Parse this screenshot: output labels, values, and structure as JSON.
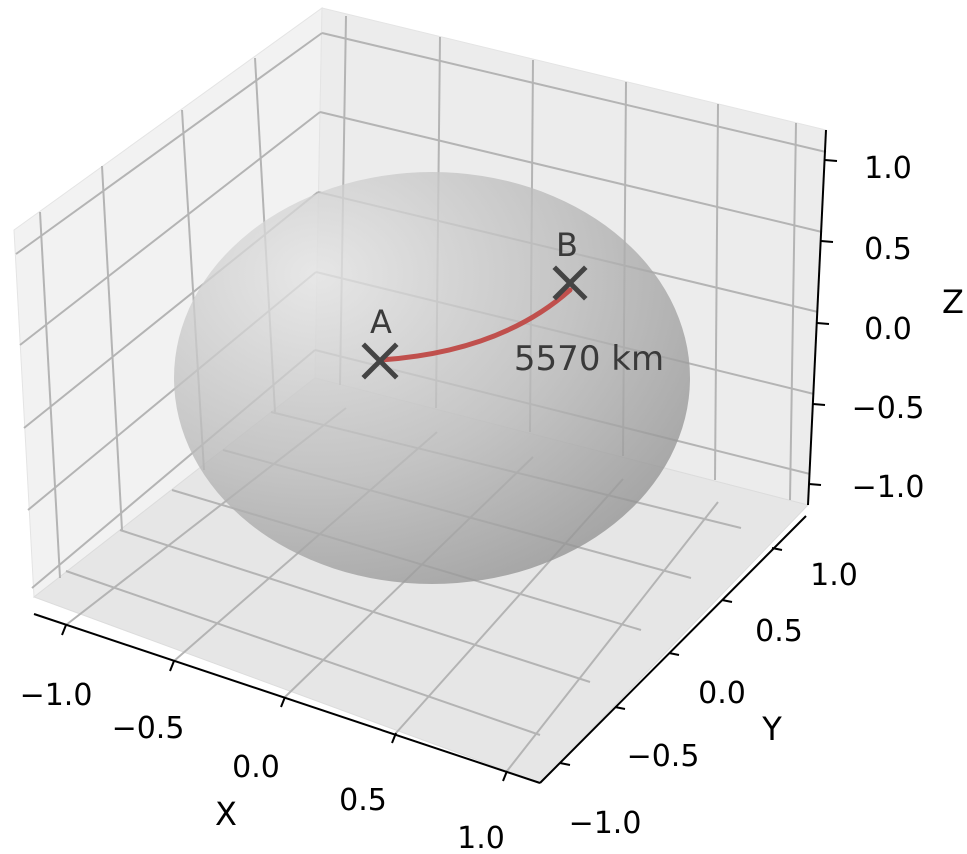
{
  "chart_data": {
    "type": "3d-surface-scatter",
    "title": "",
    "xlabel": "X",
    "ylabel": "Y",
    "zlabel": "Z",
    "xlim": [
      -1.2,
      1.2
    ],
    "ylim": [
      -1.2,
      1.2
    ],
    "zlim": [
      -1.2,
      1.2
    ],
    "x_ticks": [
      "−1.0",
      "−0.5",
      "0.0",
      "0.5",
      "1.0"
    ],
    "y_ticks": [
      "−1.0",
      "−0.5",
      "0.0",
      "0.5",
      "1.0"
    ],
    "z_ticks": [
      "−1.0",
      "−0.5",
      "0.0",
      "0.5",
      "1.0"
    ],
    "grid": true,
    "surface": {
      "shape": "unit sphere",
      "color": "#8c8c8c"
    },
    "points": [
      {
        "label": "A",
        "marker": "x",
        "color": "#444444"
      },
      {
        "label": "B",
        "marker": "x",
        "color": "#444444"
      }
    ],
    "path": {
      "from": "A",
      "to": "B",
      "kind": "great-circle arc",
      "color": "#c0504d"
    },
    "annotations": [
      "5570 km"
    ]
  }
}
